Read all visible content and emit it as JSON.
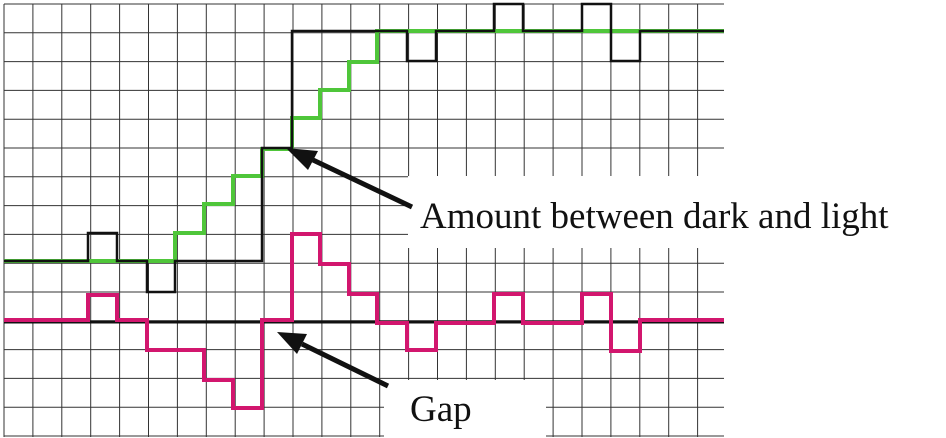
{
  "labels": {
    "amount": "Amount between dark and light",
    "gap": "Gap"
  },
  "colors": {
    "grid": "#333333",
    "dark_trace": "#111111",
    "light_trace": "#4fc63a",
    "gap_trace": "#d2166e",
    "baseline": "#111111",
    "arrow": "#111111"
  }
}
